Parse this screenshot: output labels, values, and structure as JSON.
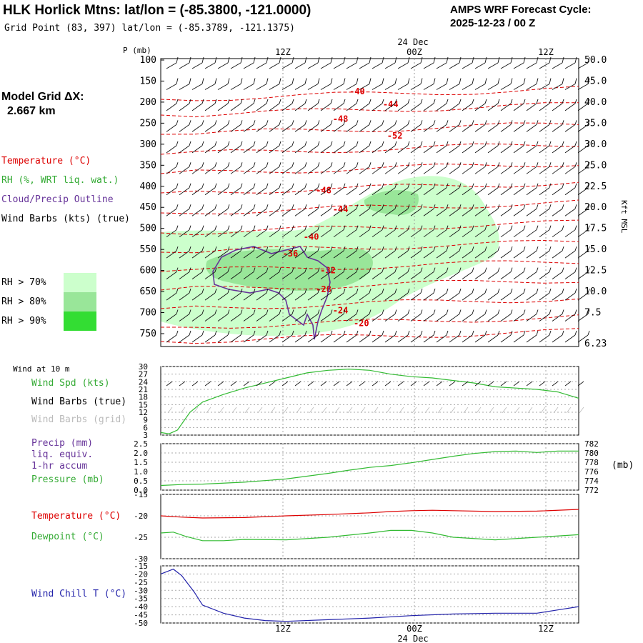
{
  "header": {
    "title": "HLK Horlick Mtns:  lat/lon = (-85.3800, -121.0000)",
    "grid_point": "Grid Point (83, 397) lat/lon = (-85.3789, -121.1375)",
    "cycle_label": "AMPS WRF Forecast Cycle:",
    "cycle_value": "2025-12-23 / 00  Z"
  },
  "model_grid": {
    "label": "Model Grid ΔX:",
    "value": "2.667 km"
  },
  "legend": {
    "temperature": "Temperature (°C)",
    "rh": "RH (%, WRT liq. wat.)",
    "cloud": "Cloud/Precip Outline",
    "wind_barbs": "Wind Barbs (kts) (true)",
    "rh70": "RH > 70%",
    "rh80": "RH > 80%",
    "rh90": "RH > 90%",
    "colors": {
      "rh70": "#ccffcc",
      "rh80": "#99e699",
      "rh90": "#33dd33",
      "temp": "#dd0000",
      "cloud": "#663399"
    }
  },
  "time_axis": {
    "top_date": "24 Dec",
    "bottom_date": "24 Dec",
    "ticks": [
      "12Z",
      "00Z",
      "12Z"
    ]
  },
  "panels": {
    "wind10_title": "Wind at 10 m",
    "wind_spd": "Wind Spd (kts)",
    "barbs_true": "Wind Barbs (true)",
    "barbs_grid": "Wind Barbs (grid)",
    "precip": "Precip (mm)",
    "precip2": "liq. equiv.",
    "precip3": "1-hr accum",
    "pressure": "Pressure (mb)",
    "mb_unit": "(mb)",
    "temperature": "Temperature (°C)",
    "dewpoint": "Dewpoint (°C)",
    "windchill": "Wind Chill T (°C)",
    "kft": "Kft MSL"
  },
  "chart_data": [
    {
      "type": "line",
      "name": "cross-section",
      "ylabel": "P (mb)",
      "pressure_levels": [
        100,
        150,
        200,
        250,
        300,
        350,
        400,
        450,
        500,
        550,
        600,
        650,
        700,
        750
      ],
      "height_kft": [
        "50.0",
        "45.0",
        "40.0",
        "35.0",
        "30.0",
        "25.0",
        "22.5",
        "20.0",
        "17.5",
        "15.0",
        "12.5",
        "10.0",
        "7.5",
        "6.23"
      ],
      "temperature_contour_labels": [
        {
          "label": "-40",
          "t": 0.47,
          "p": 175
        },
        {
          "label": "-44",
          "t": 0.55,
          "p": 205
        },
        {
          "label": "-48",
          "t": 0.43,
          "p": 240
        },
        {
          "label": "-52",
          "t": 0.56,
          "p": 280
        },
        {
          "label": "-48",
          "t": 0.39,
          "p": 410
        },
        {
          "label": "-44",
          "t": 0.43,
          "p": 455
        },
        {
          "label": "-40",
          "t": 0.36,
          "p": 520
        },
        {
          "label": "-36",
          "t": 0.31,
          "p": 560
        },
        {
          "label": "-32",
          "t": 0.4,
          "p": 600
        },
        {
          "label": "-28",
          "t": 0.39,
          "p": 645
        },
        {
          "label": "-24",
          "t": 0.43,
          "p": 695
        },
        {
          "label": "-20",
          "t": 0.48,
          "p": 725
        }
      ]
    },
    {
      "type": "line",
      "name": "wind-speed-10m",
      "ylim": [
        3,
        30
      ],
      "yticks": [
        3,
        6,
        9,
        12,
        15,
        18,
        21,
        24,
        27,
        30
      ],
      "series": [
        {
          "name": "Wind Spd (kts)",
          "t": [
            0,
            0.02,
            0.04,
            0.07,
            0.1,
            0.15,
            0.2,
            0.25,
            0.3,
            0.35,
            0.4,
            0.45,
            0.5,
            0.55,
            0.6,
            0.65,
            0.7,
            0.75,
            0.8,
            0.85,
            0.9,
            0.95,
            1.0
          ],
          "values": [
            4,
            3.5,
            5,
            12,
            16,
            19,
            21.5,
            23.5,
            25.5,
            27.5,
            28.5,
            29,
            28.5,
            27,
            26,
            25.5,
            24.5,
            23.5,
            22,
            21.5,
            21,
            20,
            17.5
          ]
        }
      ]
    },
    {
      "type": "line",
      "name": "pressure",
      "ylim": [
        0,
        2.5
      ],
      "yticks": [
        0.0,
        0.5,
        1.0,
        1.5,
        2.0,
        2.5
      ],
      "y2lim": [
        772,
        782
      ],
      "y2ticks": [
        772,
        774,
        776,
        778,
        780,
        782
      ],
      "series": [
        {
          "name": "Pressure (mb)",
          "t": [
            0,
            0.05,
            0.1,
            0.2,
            0.3,
            0.4,
            0.45,
            0.5,
            0.55,
            0.6,
            0.65,
            0.7,
            0.75,
            0.8,
            0.85,
            0.9,
            0.95,
            1.0
          ],
          "values": [
            773.0,
            773.2,
            773.3,
            773.7,
            774.4,
            775.6,
            776.3,
            776.9,
            777.3,
            777.9,
            778.6,
            779.3,
            779.9,
            780.3,
            780.4,
            780.1,
            780.4,
            780.4
          ]
        }
      ]
    },
    {
      "type": "line",
      "name": "temperature-dewpoint",
      "ylim": [
        -30,
        -15
      ],
      "yticks": [
        -30,
        -25,
        -20,
        -15
      ],
      "series": [
        {
          "name": "Temperature (°C)",
          "t": [
            0,
            0.05,
            0.1,
            0.2,
            0.3,
            0.4,
            0.5,
            0.55,
            0.6,
            0.65,
            0.7,
            0.8,
            0.9,
            1.0
          ],
          "values": [
            -20.0,
            -20.3,
            -20.5,
            -20.4,
            -20.0,
            -19.7,
            -19.3,
            -19.0,
            -18.8,
            -18.7,
            -18.8,
            -19.0,
            -18.9,
            -18.5
          ]
        },
        {
          "name": "Dewpoint (°C)",
          "t": [
            0,
            0.03,
            0.06,
            0.1,
            0.15,
            0.2,
            0.3,
            0.4,
            0.5,
            0.55,
            0.6,
            0.65,
            0.7,
            0.8,
            0.9,
            1.0
          ],
          "values": [
            -24.0,
            -23.8,
            -24.8,
            -25.8,
            -25.8,
            -25.5,
            -25.6,
            -25.0,
            -24.0,
            -23.4,
            -23.4,
            -24.0,
            -25.0,
            -25.6,
            -25.0,
            -24.4
          ]
        }
      ]
    },
    {
      "type": "line",
      "name": "wind-chill",
      "ylim": [
        -50,
        -15
      ],
      "yticks": [
        -50,
        -45,
        -40,
        -35,
        -30,
        -25,
        -20,
        -15
      ],
      "series": [
        {
          "name": "Wind Chill T (°C)",
          "t": [
            0,
            0.03,
            0.05,
            0.08,
            0.1,
            0.15,
            0.2,
            0.25,
            0.3,
            0.4,
            0.5,
            0.6,
            0.7,
            0.8,
            0.9,
            0.95,
            1.0
          ],
          "values": [
            -20,
            -17,
            -21,
            -31,
            -39,
            -44,
            -47,
            -48.5,
            -49,
            -48,
            -47,
            -45.5,
            -44.5,
            -44,
            -44,
            -42,
            -40
          ]
        }
      ]
    }
  ]
}
